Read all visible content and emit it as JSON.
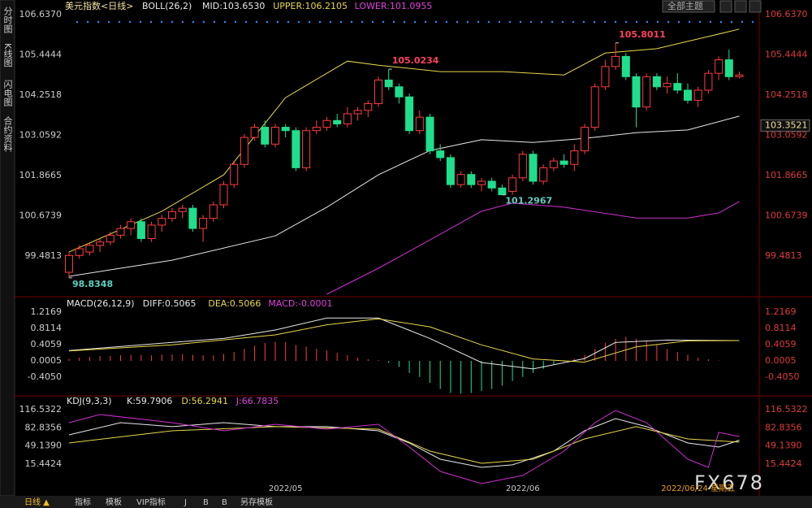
{
  "header": {
    "theme": "全部主题"
  },
  "sidebar": [
    "分时图",
    "K线图",
    "闪电图",
    "合约资料"
  ],
  "tabs": [
    "日线 ▲",
    "指标",
    "模板",
    "VIP指标",
    "J",
    "B",
    "B",
    "另存模板"
  ],
  "watermark": "FX678",
  "chart_data": [
    {
      "type": "candlestick",
      "title": "美元指数<日线>",
      "legend": [
        {
          "text": "BOLL(26,2)",
          "color": "#e8e8e8"
        },
        {
          "text": "MID:103.6530",
          "color": "#e8e8e8"
        },
        {
          "text": "UPPER:106.2105",
          "color": "#e8d84a"
        },
        {
          "text": "LOWER:101.0955",
          "color": "#e040e0"
        }
      ],
      "up_color": "#ff3c3c",
      "down_color": "#1ee08c",
      "open": [
        99.0,
        99.5,
        99.6,
        99.8,
        99.9,
        100.1,
        100.3,
        100.5,
        100.0,
        100.4,
        100.6,
        100.8,
        100.9,
        100.3,
        100.6,
        101.0,
        101.6,
        102.2,
        103.0,
        103.3,
        102.8,
        103.3,
        103.2,
        102.1,
        103.2,
        103.3,
        103.5,
        103.4,
        103.7,
        103.8,
        104.0,
        104.7,
        104.5,
        104.2,
        103.2,
        103.6,
        102.6,
        102.4,
        101.6,
        101.9,
        101.6,
        101.7,
        101.5,
        101.4,
        101.8,
        102.5,
        101.7,
        102.1,
        102.3,
        102.2,
        102.6,
        103.3,
        104.5,
        105.1,
        105.4,
        104.8,
        103.9,
        104.8,
        104.5,
        104.6,
        104.4,
        104.1,
        104.4,
        104.9,
        105.3,
        104.8
      ],
      "high": [
        99.6,
        99.8,
        99.9,
        100.0,
        100.2,
        100.4,
        100.6,
        100.6,
        100.5,
        100.7,
        100.9,
        101.0,
        101.0,
        100.7,
        101.1,
        101.7,
        102.3,
        103.1,
        103.4,
        103.5,
        103.4,
        103.4,
        103.3,
        103.3,
        103.5,
        103.6,
        103.7,
        103.9,
        103.9,
        104.1,
        104.8,
        105.0234,
        104.6,
        104.3,
        103.8,
        103.7,
        102.8,
        102.5,
        102.0,
        102.0,
        101.8,
        101.8,
        101.6,
        101.9,
        102.6,
        102.6,
        102.2,
        102.4,
        102.5,
        102.8,
        103.4,
        104.6,
        105.3,
        105.8011,
        105.5,
        104.9,
        104.9,
        104.9,
        104.8,
        104.9,
        104.6,
        104.5,
        105.0,
        105.4,
        105.6,
        104.95
      ],
      "low": [
        98.8348,
        99.4,
        99.5,
        99.6,
        99.8,
        100.0,
        100.1,
        99.9,
        99.9,
        100.2,
        100.5,
        100.6,
        100.2,
        99.9,
        100.5,
        100.9,
        101.5,
        102.1,
        102.9,
        102.7,
        102.7,
        103.0,
        102.0,
        102.0,
        103.1,
        103.2,
        103.3,
        103.3,
        103.5,
        103.6,
        103.9,
        104.4,
        104.0,
        103.1,
        103.1,
        102.5,
        102.3,
        101.5,
        101.5,
        101.5,
        101.4,
        101.4,
        101.2967,
        101.3,
        101.7,
        101.6,
        101.6,
        102.0,
        102.1,
        102.0,
        102.5,
        103.2,
        104.4,
        105.0,
        104.7,
        103.3,
        103.8,
        104.4,
        104.3,
        104.3,
        104.0,
        103.9,
        104.3,
        104.7,
        104.7,
        104.75
      ],
      "close": [
        99.5,
        99.7,
        99.8,
        99.9,
        100.1,
        100.3,
        100.5,
        100.0,
        100.4,
        100.6,
        100.8,
        100.9,
        100.3,
        100.6,
        101.0,
        101.6,
        102.2,
        103.0,
        103.3,
        102.8,
        103.3,
        103.2,
        102.1,
        103.2,
        103.3,
        103.5,
        103.4,
        103.7,
        103.8,
        104.0,
        104.7,
        104.5,
        104.2,
        103.2,
        103.6,
        102.6,
        102.4,
        101.6,
        101.9,
        101.6,
        101.7,
        101.5,
        101.3,
        101.8,
        102.5,
        101.7,
        102.1,
        102.3,
        102.2,
        102.6,
        103.3,
        104.5,
        105.1,
        105.4,
        104.8,
        103.9,
        104.8,
        104.5,
        104.6,
        104.4,
        104.1,
        104.4,
        104.9,
        105.3,
        104.8,
        104.85
      ],
      "annotations": [
        {
          "path": "high.31",
          "color": "#ff4060"
        },
        {
          "path": "high.53",
          "color": "#ff4060"
        },
        {
          "path": "low.42",
          "color": "#5ed0c0"
        },
        {
          "path": "low.0",
          "color": "#5ed0c0"
        }
      ],
      "lines": [
        {
          "color": "#e8e8e8",
          "x": [
            0,
            10,
            20,
            25,
            30,
            35,
            40,
            45,
            50,
            55,
            60,
            65
          ],
          "values": [
            98.88,
            99.36,
            100.08,
            100.93,
            101.89,
            102.61,
            102.93,
            102.85,
            102.97,
            103.14,
            103.22,
            103.63
          ]
        },
        {
          "color": "#e8d84a",
          "x": [
            0,
            9,
            15,
            21,
            27,
            30,
            36,
            42,
            48,
            52,
            57,
            62,
            65
          ],
          "values": [
            99.6,
            100.81,
            101.89,
            104.18,
            105.26,
            105.14,
            104.95,
            104.95,
            104.85,
            105.5,
            105.63,
            105.99,
            106.21
          ]
        },
        {
          "color": "#d030d0",
          "x": [
            25,
            30,
            35,
            40,
            43,
            48,
            55,
            60,
            63,
            65
          ],
          "values": [
            98.35,
            99.12,
            99.96,
            100.81,
            101.05,
            100.93,
            100.61,
            100.61,
            100.76,
            101.1
          ]
        }
      ],
      "x_labels": [
        {
          "index": 21,
          "label": "2022/05"
        },
        {
          "index": 44,
          "label": "2022/06"
        },
        {
          "index": 61,
          "label": "2022/06/24 星期五"
        }
      ],
      "price_tag": 103.3521,
      "ylim": [
        98.35,
        106.88
      ],
      "yticks": [
        {
          "value": 106.637,
          "label": "106.6370"
        },
        {
          "value": 105.4444,
          "label": "105.4444"
        },
        {
          "value": 104.2518,
          "label": "104.2518"
        },
        {
          "value": 103.0592,
          "label": "103.0592"
        },
        {
          "value": 101.8665,
          "label": "101.8665"
        },
        {
          "value": 100.6739,
          "label": "100.6739"
        },
        {
          "value": 99.4813,
          "label": "99.4813"
        }
      ]
    },
    {
      "type": "macd",
      "legend": [
        {
          "text": "MACD(26,12,9)",
          "color": "#e8e8e8"
        },
        {
          "text": "DIFF:0.5065",
          "color": "#e8e8e8"
        },
        {
          "text": "DEA:0.5066",
          "color": "#e8d84a"
        },
        {
          "text": "MACD:-0.0001",
          "color": "#e040e0"
        }
      ],
      "up_color": "#ff3c3c",
      "down_color": "#1ee08c",
      "histogram": [
        0.05,
        0.08,
        0.1,
        0.12,
        0.12,
        0.14,
        0.15,
        0.15,
        0.14,
        0.16,
        0.16,
        0.17,
        0.15,
        0.14,
        0.14,
        0.17,
        0.22,
        0.3,
        0.38,
        0.45,
        0.48,
        0.47,
        0.4,
        0.36,
        0.3,
        0.26,
        0.2,
        0.14,
        0.08,
        0.04,
        0.02,
        -0.05,
        -0.15,
        -0.3,
        -0.4,
        -0.55,
        -0.7,
        -0.8,
        -0.82,
        -0.8,
        -0.75,
        -0.7,
        -0.62,
        -0.5,
        -0.4,
        -0.3,
        -0.2,
        -0.1,
        -0.02,
        0.05,
        0.15,
        0.3,
        0.45,
        0.55,
        0.6,
        0.55,
        0.5,
        0.4,
        0.3,
        0.22,
        0.15,
        0.08,
        0.04,
        0.01,
        0.0,
        -0.0001
      ],
      "lines": [
        {
          "color": "#e8e8e8",
          "x": [
            0,
            10,
            15,
            20,
            25,
            30,
            35,
            40,
            45,
            50,
            53,
            58,
            65
          ],
          "values": [
            0.257,
            0.46,
            0.56,
            0.77,
            1.07,
            1.07,
            0.56,
            -0.04,
            -0.2,
            0.06,
            0.46,
            0.52,
            0.5065
          ]
        },
        {
          "color": "#e8d84a",
          "x": [
            0,
            10,
            20,
            25,
            30,
            35,
            40,
            45,
            50,
            55,
            60,
            65
          ],
          "values": [
            0.25,
            0.4,
            0.65,
            0.9,
            1.05,
            0.85,
            0.4,
            0.05,
            -0.03,
            0.35,
            0.5,
            0.5066
          ]
        }
      ],
      "ylim": [
        -0.831,
        1.501
      ],
      "yticks": [
        {
          "value": 1.2169,
          "label": "1.2169"
        },
        {
          "value": 0.8114,
          "label": "0.8114"
        },
        {
          "value": 0.4059,
          "label": "0.4059"
        },
        {
          "value": 0.0005,
          "label": "0.0005"
        },
        {
          "value": -0.405,
          "label": "-0.4050"
        }
      ]
    },
    {
      "type": "kdj",
      "legend": [
        {
          "text": "KDJ(9,3,3)",
          "color": "#e8e8e8"
        },
        {
          "text": "K:59.7906",
          "color": "#e8e8e8"
        },
        {
          "text": "D:56.2941",
          "color": "#e8d84a"
        },
        {
          "text": "J:66.7835",
          "color": "#e040e0"
        }
      ],
      "lines": [
        {
          "color": "#e8e8e8",
          "x": [
            0,
            5,
            10,
            15,
            20,
            25,
            30,
            33,
            36,
            40,
            43,
            47,
            50,
            53,
            56,
            60,
            63,
            65
          ],
          "values": [
            69.8,
            92.4,
            84.9,
            92.4,
            84.9,
            84.9,
            77.3,
            54.7,
            24.5,
            9.4,
            14,
            39.6,
            77.3,
            99.9,
            84.9,
            54.7,
            47.1,
            59.79
          ]
        },
        {
          "color": "#e8d84a",
          "x": [
            0,
            10,
            20,
            30,
            35,
            40,
            45,
            50,
            55,
            60,
            65
          ],
          "values": [
            54.7,
            77.3,
            84.9,
            80.3,
            39.6,
            17,
            24.5,
            62.2,
            84.9,
            62.2,
            56.29
          ]
        },
        {
          "color": "#d030d0",
          "x": [
            0,
            3,
            10,
            15,
            20,
            25,
            30,
            33,
            36,
            40,
            44,
            48,
            51,
            53,
            56,
            60,
            62,
            63,
            65
          ],
          "values": [
            92.4,
            107.5,
            92.4,
            77.3,
            89.4,
            80.3,
            89.4,
            47.1,
            1.9,
            -20.7,
            -5.6,
            39.6,
            92.4,
            115,
            92.4,
            24.5,
            9.4,
            74.3,
            66.78
          ]
        }
      ],
      "ylim": [
        -43.4,
        137.6
      ],
      "yticks": [
        {
          "value": 116.5322,
          "label": "116.5322"
        },
        {
          "value": 82.8356,
          "label": "82.8356"
        },
        {
          "value": 49.139,
          "label": "49.1390"
        },
        {
          "value": 15.4424,
          "label": "15.4424"
        }
      ]
    }
  ]
}
